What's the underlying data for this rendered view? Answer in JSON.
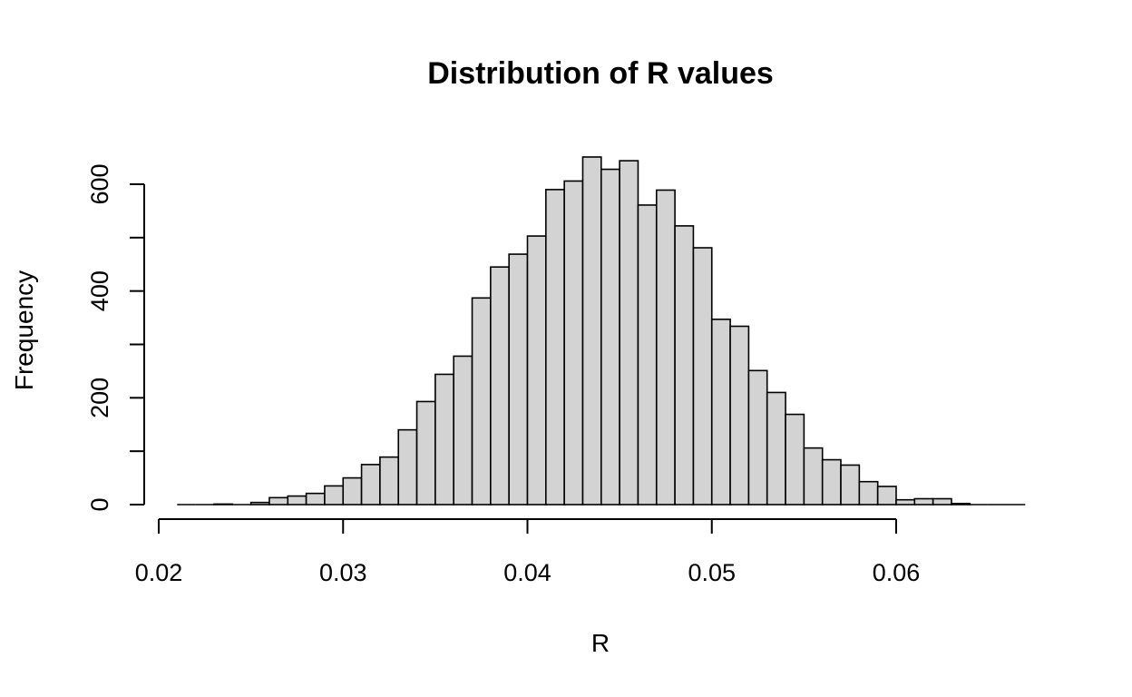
{
  "chart_data": {
    "type": "bar",
    "subtype": "histogram",
    "title": "Distribution of R values",
    "xlabel": "R",
    "ylabel": "Frequency",
    "xlim": [
      0.02,
      0.065
    ],
    "ylim": [
      0,
      650
    ],
    "x_ticks": [
      0.02,
      0.03,
      0.04,
      0.05,
      0.06
    ],
    "x_tick_labels": [
      "0.02",
      "0.03",
      "0.04",
      "0.05",
      "0.06"
    ],
    "y_ticks": [
      0,
      100,
      200,
      300,
      400,
      500,
      600
    ],
    "y_tick_labels": [
      "0",
      "",
      "200",
      "",
      "400",
      "",
      "600"
    ],
    "grid": false,
    "bar_color": "#d3d3d3",
    "bin_start": 0.021,
    "bin_width": 0.001,
    "values": [
      0,
      0,
      1,
      0,
      4,
      13,
      16,
      21,
      35,
      50,
      75,
      89,
      140,
      193,
      244,
      278,
      387,
      445,
      469,
      503,
      590,
      606,
      651,
      628,
      644,
      561,
      589,
      522,
      481,
      347,
      334,
      251,
      210,
      169,
      106,
      84,
      74,
      43,
      34,
      9,
      11,
      11,
      2,
      0,
      0,
      0
    ]
  }
}
